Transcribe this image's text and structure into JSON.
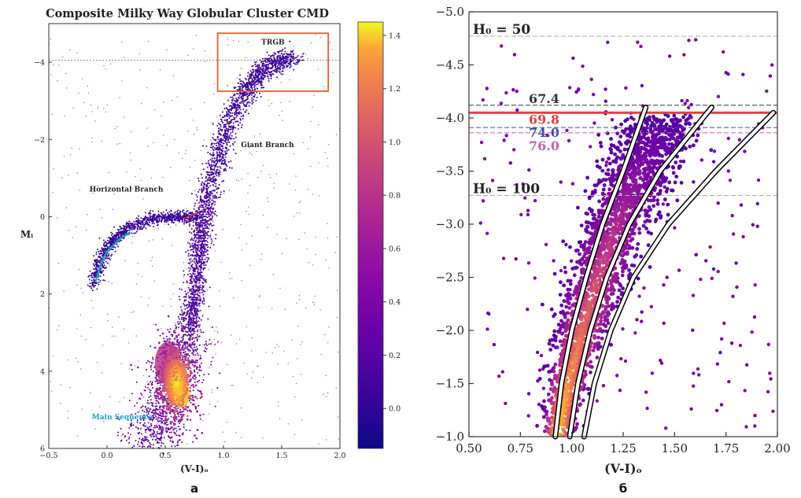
{
  "chart_data": [
    {
      "panel_label": "а",
      "type": "scatter",
      "title": "Composite Milky Way Globular Cluster CMD",
      "xlabel": "(V-I)ₒ",
      "ylabel": "Mᵢ",
      "xlim": [
        -0.5,
        2.0
      ],
      "ylim": [
        6,
        -5
      ],
      "x_ticks": [
        -0.5,
        0.0,
        0.5,
        1.0,
        1.5,
        2.0
      ],
      "x_tick_labels": [
        "−0.5",
        "0.0",
        "0.5",
        "1.0",
        "1.5",
        "2.0"
      ],
      "y_ticks": [
        -4,
        -2,
        0,
        2,
        4,
        6
      ],
      "y_tick_labels": [
        "−4",
        "−2",
        "0",
        "2",
        "4",
        "6"
      ],
      "colorbar": {
        "range": [
          -0.15,
          1.45
        ],
        "ticks": [
          0.0,
          0.2,
          0.4,
          0.6,
          0.8,
          1.0,
          1.2,
          1.4
        ],
        "tick_labels": [
          "0.0",
          "0.2",
          "0.4",
          "0.6",
          "0.8",
          "1.0",
          "1.2",
          "1.4"
        ],
        "colormap": "plasma"
      },
      "trgb_line_y": -4.05,
      "trgb_box": {
        "x": [
          0.95,
          1.9
        ],
        "y": [
          -4.75,
          -3.25
        ],
        "label": "TRGB"
      },
      "annotations": [
        {
          "text": "Giant Branch",
          "x": 1.15,
          "y": -1.8
        },
        {
          "text": "Horizontal Branch",
          "x": -0.15,
          "y": -0.65
        },
        {
          "text": "Main Sequence",
          "x": -0.13,
          "y": 5.25
        }
      ],
      "sequences": {
        "main_sequence": {
          "x": [
            0.35,
            0.45,
            0.55,
            0.62,
            0.7
          ],
          "y": [
            6.0,
            5.3,
            4.6,
            3.8,
            3.0
          ]
        },
        "subgiant": {
          "x": [
            0.7,
            0.74,
            0.78,
            0.82,
            0.86
          ],
          "y": [
            3.0,
            2.2,
            1.2,
            0.3,
            -0.5
          ]
        },
        "giant_branch": {
          "x": [
            0.86,
            0.95,
            1.05,
            1.18,
            1.3,
            1.45,
            1.6
          ],
          "y": [
            -0.5,
            -1.5,
            -2.5,
            -3.2,
            -3.7,
            -4.0,
            -4.1
          ]
        },
        "horizontal_branch": {
          "x": [
            -0.12,
            -0.05,
            0.05,
            0.2,
            0.4,
            0.6,
            0.8
          ],
          "y": [
            1.8,
            1.1,
            0.6,
            0.25,
            0.05,
            0.0,
            0.0
          ]
        },
        "horizontal_branch_fit": {
          "x": [
            -0.1,
            -0.05,
            0.0,
            0.1,
            0.2
          ],
          "y": [
            1.7,
            1.2,
            0.9,
            0.6,
            0.4
          ]
        },
        "red_clump_fit": {
          "x": [
            0.65,
            0.72,
            0.78
          ],
          "y": [
            0.05,
            -0.02,
            -0.1
          ]
        }
      },
      "colors": {
        "blue_fit": "#1f9fbf",
        "red_fit": "#e0302a",
        "box": "#e0602a"
      }
    },
    {
      "panel_label": "б",
      "type": "scatter",
      "xlabel": "(V-I)ₒ",
      "ylabel": "",
      "xlim": [
        0.5,
        2.0
      ],
      "ylim": [
        -1.0,
        -5.0
      ],
      "x_ticks": [
        0.5,
        0.75,
        1.0,
        1.25,
        1.5,
        1.75,
        2.0
      ],
      "x_tick_labels": [
        "0.50",
        "0.75",
        "1.00",
        "1.25",
        "1.50",
        "1.75",
        "2.00"
      ],
      "y_ticks": [
        -1.0,
        -1.5,
        -2.0,
        -2.5,
        -3.0,
        -3.5,
        -4.0,
        -4.5,
        -5.0
      ],
      "y_tick_labels": [
        "−1.0",
        "−1.5",
        "−2.0",
        "−2.5",
        "−3.0",
        "−3.5",
        "−4.0",
        "−4.5",
        "−5.0"
      ],
      "h0_lines": [
        {
          "label": "H₀ = 50",
          "y": -4.77,
          "color": "#aaaaaa",
          "dashed": true
        },
        {
          "label": "67.4",
          "y": -4.12,
          "color": "#333333",
          "dashed": true
        },
        {
          "label": "69.8",
          "y": -4.05,
          "color": "#e04040",
          "dashed": false
        },
        {
          "label": "74.0",
          "y": -3.91,
          "color": "#3a4fa8",
          "dashed": true
        },
        {
          "label": "76.0",
          "y": -3.86,
          "color": "#c55fa8",
          "dashed": true
        },
        {
          "label": "H₀ = 100",
          "y": -3.27,
          "color": "#aaaaaa",
          "dashed": true
        }
      ],
      "rgb_tracks": [
        {
          "x": [
            0.92,
            0.95,
            1.0,
            1.07,
            1.15,
            1.25,
            1.36
          ],
          "y": [
            -1.0,
            -1.5,
            -2.0,
            -2.5,
            -3.0,
            -3.5,
            -4.1
          ]
        },
        {
          "x": [
            0.99,
            1.03,
            1.09,
            1.17,
            1.28,
            1.43,
            1.68
          ],
          "y": [
            -1.0,
            -1.5,
            -2.0,
            -2.5,
            -3.0,
            -3.5,
            -4.1
          ]
        },
        {
          "x": [
            1.06,
            1.11,
            1.19,
            1.3,
            1.47,
            1.7,
            1.98
          ],
          "y": [
            -1.0,
            -1.5,
            -2.0,
            -2.5,
            -3.0,
            -3.5,
            -4.05
          ]
        }
      ],
      "density_ridge": {
        "x": [
          0.93,
          0.98,
          1.05,
          1.13,
          1.22,
          1.32,
          1.45
        ],
        "y": [
          -1.0,
          -1.5,
          -2.0,
          -2.5,
          -3.0,
          -3.5,
          -4.0
        ]
      }
    }
  ],
  "captions": {
    "left": "а",
    "right": "б"
  }
}
